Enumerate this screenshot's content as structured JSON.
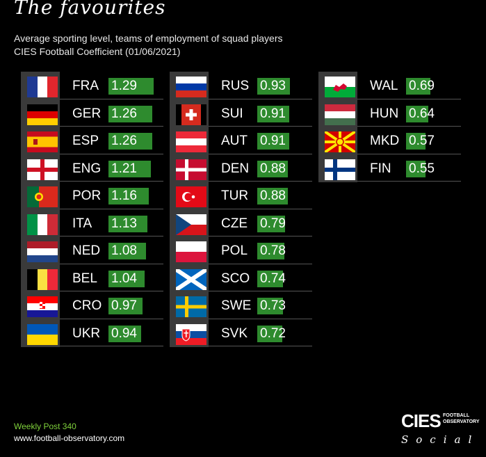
{
  "header": {
    "title": "The favourites",
    "subtitle1": "Average sporting level, teams of employment of squad players",
    "subtitle2": "CIES Football Coefficient (01/06/2021)"
  },
  "chart_data": {
    "type": "bar",
    "bar_color": "#2e8b2e",
    "columns": [
      [
        {
          "code": "FRA",
          "value": 1.29,
          "flag": "france-flag-icon"
        },
        {
          "code": "GER",
          "value": 1.26,
          "flag": "germany-flag-icon"
        },
        {
          "code": "ESP",
          "value": 1.26,
          "flag": "spain-flag-icon"
        },
        {
          "code": "ENG",
          "value": 1.21,
          "flag": "england-flag-icon"
        },
        {
          "code": "POR",
          "value": 1.16,
          "flag": "portugal-flag-icon"
        },
        {
          "code": "ITA",
          "value": 1.13,
          "flag": "italy-flag-icon"
        },
        {
          "code": "NED",
          "value": 1.08,
          "flag": "netherlands-flag-icon"
        },
        {
          "code": "BEL",
          "value": 1.04,
          "flag": "belgium-flag-icon"
        },
        {
          "code": "CRO",
          "value": 0.97,
          "flag": "croatia-flag-icon"
        },
        {
          "code": "UKR",
          "value": 0.94,
          "flag": "ukraine-flag-icon"
        }
      ],
      [
        {
          "code": "RUS",
          "value": 0.93,
          "flag": "russia-flag-icon"
        },
        {
          "code": "SUI",
          "value": 0.91,
          "flag": "switzerland-flag-icon"
        },
        {
          "code": "AUT",
          "value": 0.91,
          "flag": "austria-flag-icon"
        },
        {
          "code": "DEN",
          "value": 0.88,
          "flag": "denmark-flag-icon"
        },
        {
          "code": "TUR",
          "value": 0.88,
          "flag": "turkey-flag-icon"
        },
        {
          "code": "CZE",
          "value": 0.79,
          "flag": "czechia-flag-icon"
        },
        {
          "code": "POL",
          "value": 0.78,
          "flag": "poland-flag-icon"
        },
        {
          "code": "SCO",
          "value": 0.74,
          "flag": "scotland-flag-icon"
        },
        {
          "code": "SWE",
          "value": 0.73,
          "flag": "sweden-flag-icon"
        },
        {
          "code": "SVK",
          "value": 0.72,
          "flag": "slovakia-flag-icon"
        }
      ],
      [
        {
          "code": "WAL",
          "value": 0.69,
          "flag": "wales-flag-icon"
        },
        {
          "code": "HUN",
          "value": 0.64,
          "flag": "hungary-flag-icon"
        },
        {
          "code": "MKD",
          "value": 0.57,
          "flag": "north-macedonia-flag-icon"
        },
        {
          "code": "FIN",
          "value": 0.55,
          "flag": "finland-flag-icon"
        }
      ]
    ]
  },
  "footer": {
    "post": "Weekly Post 340",
    "url": "www.football-observatory.com"
  },
  "logo": {
    "name": "CIES",
    "tagline1": "FOOTBALL",
    "tagline2": "OBSERVATORY",
    "social": "Social"
  }
}
